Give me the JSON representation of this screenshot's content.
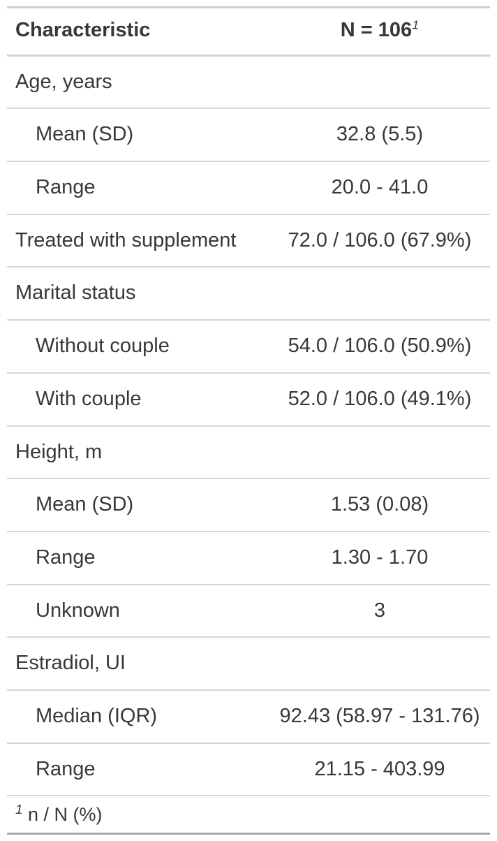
{
  "chart_data": {
    "type": "table",
    "columns": [
      {
        "label": "Characteristic"
      },
      {
        "label": "N = 106",
        "footnote_mark": "1"
      }
    ],
    "rows": [
      {
        "label": "Age, years",
        "value": "",
        "indent": false,
        "group_header": true
      },
      {
        "label": "Mean (SD)",
        "value": "32.8 (5.5)",
        "indent": true,
        "group_header": false
      },
      {
        "label": "Range",
        "value": "20.0 - 41.0",
        "indent": true,
        "group_header": false
      },
      {
        "label": "Treated with supplement",
        "value": "72.0 / 106.0 (67.9%)",
        "indent": false,
        "group_header": false
      },
      {
        "label": "Marital status",
        "value": "",
        "indent": false,
        "group_header": true
      },
      {
        "label": "Without couple",
        "value": "54.0 / 106.0 (50.9%)",
        "indent": true,
        "group_header": false
      },
      {
        "label": "With couple",
        "value": "52.0 / 106.0 (49.1%)",
        "indent": true,
        "group_header": false
      },
      {
        "label": "Height, m",
        "value": "",
        "indent": false,
        "group_header": true
      },
      {
        "label": "Mean (SD)",
        "value": "1.53 (0.08)",
        "indent": true,
        "group_header": false
      },
      {
        "label": "Range",
        "value": "1.30 - 1.70",
        "indent": true,
        "group_header": false
      },
      {
        "label": "Unknown",
        "value": "3",
        "indent": true,
        "group_header": false
      },
      {
        "label": "Estradiol, UI",
        "value": "",
        "indent": false,
        "group_header": true
      },
      {
        "label": "Median (IQR)",
        "value": "92.43 (58.97 - 131.76)",
        "indent": true,
        "group_header": false
      },
      {
        "label": "Range",
        "value": "21.15 - 403.99",
        "indent": true,
        "group_header": false
      }
    ],
    "footnote": {
      "mark": "1",
      "text": "n / N (%)"
    }
  },
  "colors": {
    "text": "#383838",
    "border_light": "#d2d2d2",
    "border_row": "#d6d6d6",
    "border_bottom_dark": "#a9a9a9",
    "background": "#ffffff"
  }
}
